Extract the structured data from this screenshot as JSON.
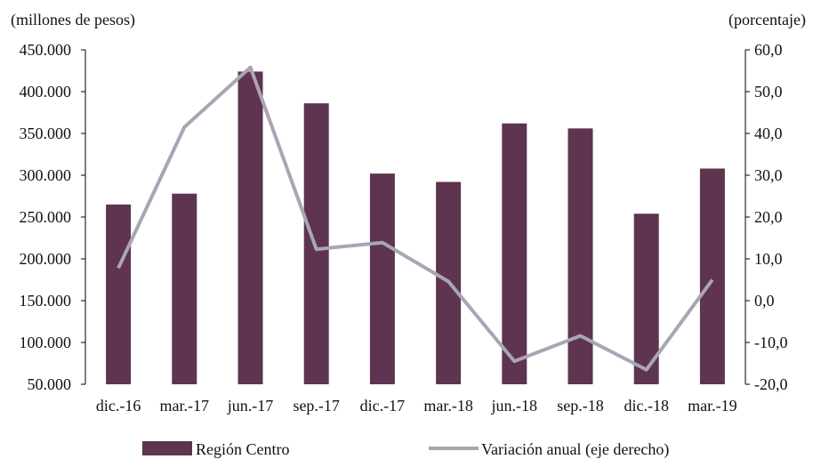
{
  "chart_data": {
    "type": "bar",
    "categories": [
      "dic.-16",
      "mar.-17",
      "jun.-17",
      "sep.-17",
      "dic.-17",
      "mar.-18",
      "jun.-18",
      "sep.-18",
      "dic.-18",
      "mar.-19"
    ],
    "left_unit_label": "(millones de pesos)",
    "right_unit_label": "(porcentaje)",
    "y_left": {
      "min": 50000,
      "max": 450000,
      "step": 50000,
      "tick_labels": [
        "50.000",
        "100.000",
        "150.000",
        "200.000",
        "250.000",
        "300.000",
        "350.000",
        "400.000",
        "450.000"
      ]
    },
    "y_right": {
      "min": -20,
      "max": 60,
      "step": 10,
      "tick_labels": [
        "-20,0",
        "-10,0",
        "0,0",
        "10,0",
        "20,0",
        "30,0",
        "40,0",
        "50,0",
        "60,0"
      ]
    },
    "series": [
      {
        "name": "Región Centro",
        "type": "bar",
        "axis": "left",
        "color": "#5e3450",
        "values": [
          265000,
          278000,
          424000,
          386000,
          302000,
          292000,
          362000,
          356000,
          254000,
          308000
        ]
      },
      {
        "name": "Variación anual (eje derecho)",
        "type": "line",
        "axis": "right",
        "color": "#a9a5b5",
        "values": [
          7.8,
          41.5,
          55.8,
          12.3,
          13.9,
          4.6,
          -14.5,
          -8.4,
          -16.5,
          5.0
        ]
      }
    ],
    "legend_position": "bottom",
    "grid": false
  }
}
